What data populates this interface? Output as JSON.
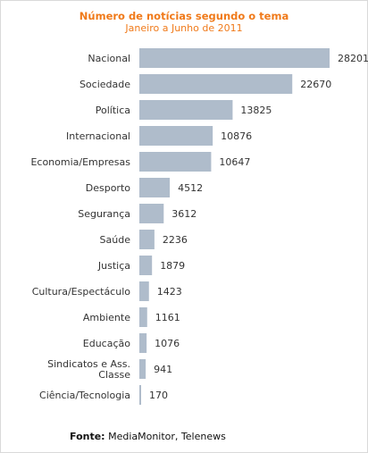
{
  "chart_data": {
    "type": "bar",
    "orientation": "horizontal",
    "title": "Número de notícias segundo o tema",
    "subtitle": "Janeiro a Junho de 2011",
    "categories": [
      "Nacional",
      "Sociedade",
      "Política",
      "Internacional",
      "Economia/Empresas",
      "Desporto",
      "Segurança",
      "Saúde",
      "Justiça",
      "Cultura/Espectáculo",
      "Ambiente",
      "Educação",
      "Sindicatos e Ass. Classe",
      "Ciência/Tecnologia"
    ],
    "values": [
      28201,
      22670,
      13825,
      10876,
      10647,
      4512,
      3612,
      2236,
      1879,
      1423,
      1161,
      1076,
      941,
      170
    ],
    "xlim": [
      0,
      28201
    ],
    "grid": false,
    "data_labels": true,
    "bar_color": "#afbccb"
  },
  "source": {
    "label": "Fonte:",
    "text": " MediaMonitor, Telenews"
  }
}
